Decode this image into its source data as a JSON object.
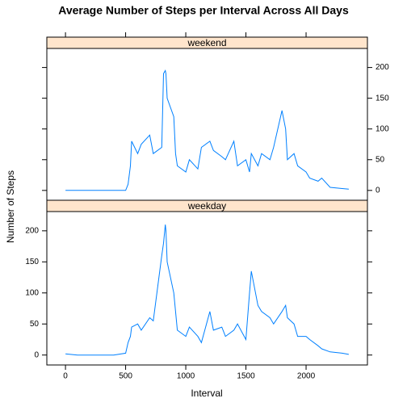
{
  "chart_data": {
    "type": "line",
    "title": "Average Number of Steps per Interval Across All Days",
    "x_label": "Interval",
    "y_label": "Number of Steps",
    "x": [
      0,
      100,
      200,
      300,
      400,
      500,
      520,
      540,
      550,
      600,
      630,
      700,
      730,
      800,
      815,
      830,
      835,
      845,
      900,
      915,
      930,
      1000,
      1030,
      1100,
      1130,
      1200,
      1230,
      1300,
      1330,
      1400,
      1430,
      1500,
      1530,
      1545,
      1600,
      1630,
      1700,
      1730,
      1800,
      1830,
      1845,
      1900,
      1930,
      2000,
      2030,
      2100,
      2130,
      2200,
      2300,
      2355
    ],
    "series": [
      {
        "name": "weekend",
        "color": "#0080ff",
        "values": [
          0,
          0,
          0,
          0,
          0,
          0,
          10,
          40,
          80,
          60,
          75,
          90,
          60,
          70,
          190,
          195,
          190,
          150,
          120,
          60,
          40,
          30,
          50,
          35,
          70,
          80,
          65,
          55,
          50,
          80,
          40,
          50,
          30,
          60,
          40,
          60,
          50,
          70,
          130,
          100,
          50,
          60,
          40,
          30,
          20,
          15,
          20,
          5,
          3,
          2
        ]
      },
      {
        "name": "weekday",
        "color": "#0080ff",
        "values": [
          2,
          0,
          0,
          0,
          0,
          3,
          20,
          30,
          45,
          50,
          40,
          60,
          55,
          160,
          180,
          210,
          200,
          150,
          100,
          70,
          40,
          30,
          45,
          30,
          20,
          70,
          40,
          45,
          30,
          40,
          50,
          25,
          100,
          135,
          80,
          70,
          60,
          50,
          70,
          80,
          60,
          50,
          30,
          30,
          25,
          15,
          10,
          5,
          3,
          1
        ]
      }
    ],
    "xlim": [
      -155,
      2510
    ],
    "xticks": [
      0,
      500,
      1000,
      1500,
      2000
    ],
    "ylim": [
      -16,
      231
    ],
    "yticks": [
      0,
      50,
      100,
      150,
      200
    ],
    "strip_color": "#ffe5cc"
  }
}
